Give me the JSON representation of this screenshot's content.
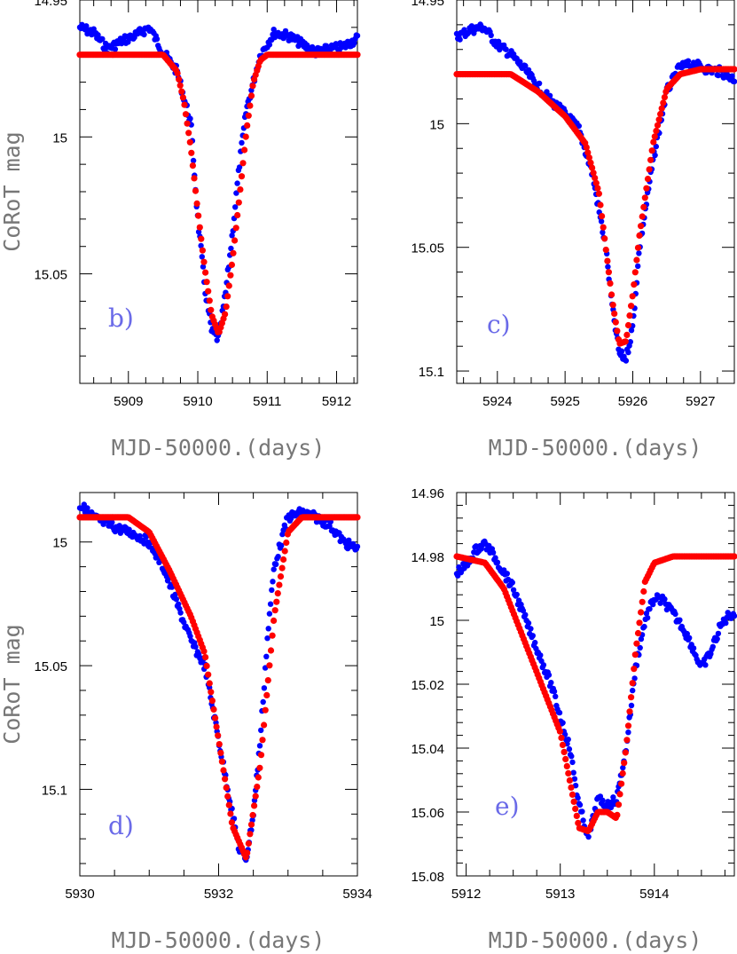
{
  "colors": {
    "observed": "#0000ff",
    "model": "#ff0000",
    "panel_label": "#6a6ae8",
    "axis_label": "#777777"
  },
  "chart_data": [
    {
      "type": "scatter",
      "panel": "b)",
      "xlabel": "MJD-50000.(days)",
      "ylabel": "CoRoT mag",
      "xlim": [
        5908.3,
        5912.3
      ],
      "ylim": [
        14.95,
        15.09
      ],
      "y_inverted": true,
      "xticks": [
        5909,
        5910,
        5911,
        5912
      ],
      "yticks": [
        14.95,
        15,
        15.05
      ],
      "ytick_labels": [
        "14.95",
        "15",
        "15.05"
      ],
      "series": [
        {
          "kind": "observed",
          "x": [
            5908.3,
            5908.5,
            5908.7,
            5908.9,
            5909.1,
            5909.3,
            5909.5,
            5909.7,
            5909.9,
            5910.0,
            5910.1,
            5910.2,
            5910.3,
            5910.4,
            5910.5,
            5910.6,
            5910.7,
            5910.9,
            5911.1,
            5911.3,
            5911.5,
            5911.7,
            5911.9,
            5912.1,
            5912.3
          ],
          "y": [
            14.96,
            14.962,
            14.968,
            14.965,
            14.963,
            14.96,
            14.969,
            14.976,
            14.995,
            15.03,
            15.055,
            15.071,
            15.074,
            15.057,
            15.035,
            15.01,
            14.99,
            14.97,
            14.962,
            14.963,
            14.966,
            14.969,
            14.968,
            14.967,
            14.964
          ]
        },
        {
          "kind": "model",
          "x": [
            5908.3,
            5909.5,
            5909.7,
            5909.8,
            5909.9,
            5910.0,
            5910.1,
            5910.2,
            5910.3,
            5910.4,
            5910.5,
            5910.6,
            5910.7,
            5910.8,
            5910.9,
            5911.0,
            5911.2,
            5912.3
          ],
          "y": [
            14.97,
            14.97,
            14.976,
            14.987,
            15.004,
            15.027,
            15.048,
            15.065,
            15.072,
            15.064,
            15.045,
            15.022,
            14.998,
            14.98,
            14.972,
            14.97,
            14.97,
            14.97
          ]
        }
      ]
    },
    {
      "type": "scatter",
      "panel": "c)",
      "xlabel": "MJD-50000.(days)",
      "ylabel": "",
      "xlim": [
        5923.4,
        5927.5
      ],
      "ylim": [
        14.95,
        15.105
      ],
      "y_inverted": true,
      "xticks": [
        5924,
        5925,
        5926,
        5927
      ],
      "yticks": [
        14.95,
        15,
        15.05,
        15.1
      ],
      "ytick_labels": [
        "14.95",
        "15",
        "15.05",
        "15.1"
      ],
      "series": [
        {
          "kind": "observed",
          "x": [
            5923.4,
            5923.6,
            5923.8,
            5924.0,
            5924.2,
            5924.4,
            5924.6,
            5924.8,
            5925.0,
            5925.2,
            5925.4,
            5925.6,
            5925.7,
            5925.8,
            5925.9,
            5926.0,
            5926.1,
            5926.3,
            5926.5,
            5926.7,
            5926.9,
            5927.1,
            5927.3,
            5927.5
          ],
          "y": [
            14.965,
            14.962,
            14.961,
            14.968,
            14.972,
            14.978,
            14.985,
            14.991,
            14.996,
            15.002,
            15.02,
            15.05,
            15.075,
            15.093,
            15.095,
            15.082,
            15.05,
            15.015,
            14.987,
            14.977,
            14.976,
            14.978,
            14.979,
            14.982
          ]
        },
        {
          "kind": "model",
          "x": [
            5923.4,
            5924.2,
            5924.6,
            5925.0,
            5925.3,
            5925.5,
            5925.6,
            5925.7,
            5925.8,
            5925.9,
            5926.0,
            5926.1,
            5926.3,
            5926.5,
            5926.7,
            5927.0,
            5927.5
          ],
          "y": [
            14.98,
            14.98,
            14.987,
            14.997,
            15.008,
            15.028,
            15.05,
            15.072,
            15.089,
            15.088,
            15.069,
            15.045,
            15.008,
            14.986,
            14.98,
            14.978,
            14.978
          ]
        }
      ]
    },
    {
      "type": "scatter",
      "panel": "d)",
      "xlabel": "MJD-50000.(days)",
      "ylabel": "CoRoT mag",
      "xlim": [
        5930,
        5934
      ],
      "ylim": [
        14.98,
        15.135
      ],
      "y_inverted": true,
      "xticks": [
        5930,
        5932,
        5934
      ],
      "yticks": [
        15,
        15.05,
        15.1
      ],
      "ytick_labels": [
        "15",
        "15.05",
        "15.1"
      ],
      "series": [
        {
          "kind": "observed",
          "x": [
            5930.0,
            5930.2,
            5930.4,
            5930.6,
            5930.8,
            5931.0,
            5931.2,
            5931.4,
            5931.6,
            5931.8,
            5932.0,
            5932.2,
            5932.3,
            5932.4,
            5932.5,
            5932.6,
            5932.7,
            5932.8,
            5933.0,
            5933.2,
            5933.4,
            5933.6,
            5933.8,
            5934.0
          ],
          "y": [
            14.985,
            14.99,
            14.993,
            14.995,
            14.997,
            15.0,
            15.01,
            15.025,
            15.04,
            15.05,
            15.08,
            15.11,
            15.125,
            15.128,
            15.11,
            15.08,
            15.04,
            15.01,
            14.99,
            14.988,
            14.99,
            14.993,
            15.0,
            15.003
          ]
        },
        {
          "kind": "model",
          "x": [
            5930.0,
            5930.7,
            5931.0,
            5931.3,
            5931.6,
            5931.8,
            5932.0,
            5932.2,
            5932.4,
            5932.6,
            5932.8,
            5933.0,
            5933.2,
            5934.0
          ],
          "y": [
            14.99,
            14.99,
            14.996,
            15.012,
            15.03,
            15.045,
            15.08,
            15.115,
            15.128,
            15.09,
            15.03,
            14.996,
            14.99,
            14.99
          ]
        }
      ]
    },
    {
      "type": "scatter",
      "panel": "e)",
      "xlabel": "MJD-50000.(days)",
      "ylabel": "",
      "xlim": [
        5911.9,
        5914.85
      ],
      "ylim": [
        14.96,
        15.08
      ],
      "y_inverted": true,
      "xticks": [
        5912,
        5913,
        5914
      ],
      "yticks": [
        14.96,
        14.98,
        15,
        15.02,
        15.04,
        15.06,
        15.08
      ],
      "ytick_labels": [
        "14.96",
        "14.98",
        "15",
        "15.02",
        "15.04",
        "15.06",
        "15.08"
      ],
      "series": [
        {
          "kind": "observed",
          "x": [
            5911.9,
            5912.0,
            5912.1,
            5912.2,
            5912.3,
            5912.5,
            5912.7,
            5912.9,
            5913.0,
            5913.1,
            5913.2,
            5913.3,
            5913.4,
            5913.5,
            5913.6,
            5913.7,
            5913.8,
            5913.9,
            5914.0,
            5914.1,
            5914.2,
            5914.3,
            5914.4,
            5914.5,
            5914.6,
            5914.7,
            5914.8
          ],
          "y": [
            14.985,
            14.983,
            14.978,
            14.976,
            14.98,
            14.99,
            15.005,
            15.02,
            15.03,
            15.04,
            15.058,
            15.068,
            15.056,
            15.058,
            15.056,
            15.04,
            15.015,
            15.0,
            14.993,
            14.994,
            14.998,
            15.002,
            15.008,
            15.015,
            15.01,
            15.002,
            14.998
          ]
        },
        {
          "kind": "model",
          "x": [
            5911.9,
            5912.2,
            5912.4,
            5912.6,
            5912.8,
            5913.0,
            5913.1,
            5913.2,
            5913.3,
            5913.4,
            5913.5,
            5913.6,
            5913.7,
            5913.8,
            5913.9,
            5914.0,
            5914.2,
            5914.85
          ],
          "y": [
            14.98,
            14.982,
            14.99,
            15.005,
            15.02,
            15.035,
            15.05,
            15.065,
            15.066,
            15.06,
            15.06,
            15.062,
            15.04,
            15.01,
            14.988,
            14.982,
            14.98,
            14.98
          ]
        }
      ]
    }
  ]
}
